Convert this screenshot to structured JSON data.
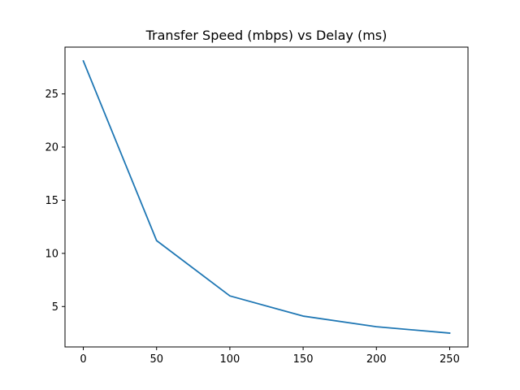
{
  "chart_data": {
    "type": "line",
    "title": "Transfer Speed (mbps) vs Delay (ms)",
    "xlabel": "",
    "ylabel": "",
    "x": [
      0,
      50,
      100,
      150,
      200,
      250
    ],
    "series": [
      {
        "values": [
          28.1,
          11.2,
          6.0,
          4.1,
          3.1,
          2.5
        ],
        "color": "#1f77b4"
      }
    ],
    "xlim": [
      -12.5,
      262.5
    ],
    "ylim": [
      1.2,
      29.4
    ],
    "xticks": [
      0,
      50,
      100,
      150,
      200,
      250
    ],
    "xtick_labels": [
      "0",
      "50",
      "100",
      "150",
      "200",
      "250"
    ],
    "yticks": [
      5,
      10,
      15,
      20,
      25
    ],
    "ytick_labels": [
      "5",
      "10",
      "15",
      "20",
      "25"
    ],
    "grid": false,
    "legend": "none"
  }
}
